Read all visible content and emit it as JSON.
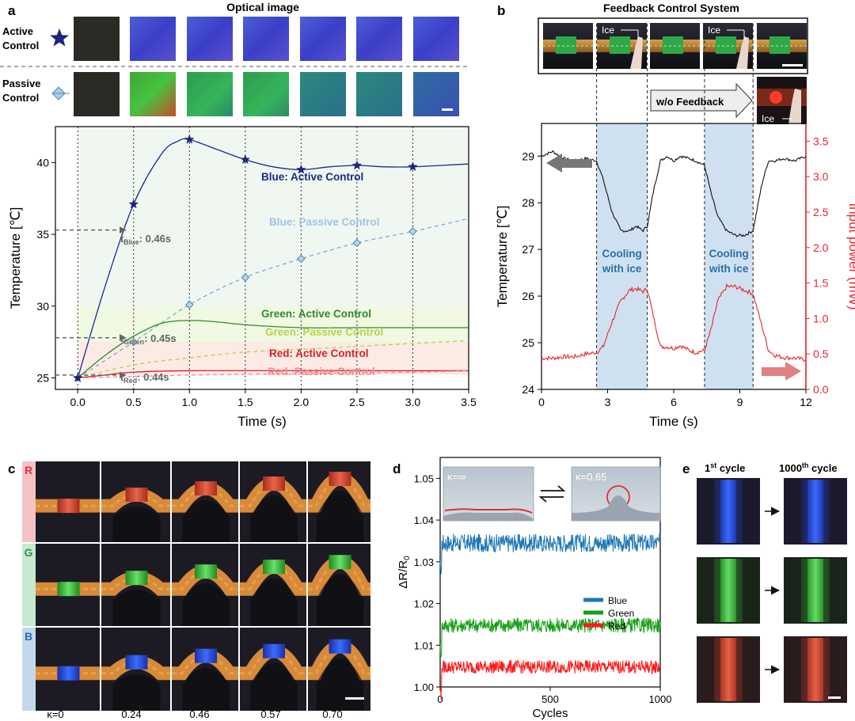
{
  "panel_a": {
    "letter": "a",
    "heading": "Optical image",
    "row_labels": {
      "active": "Active Control",
      "passive": "Passive Control"
    },
    "legend_series": [
      {
        "key": "blue_active",
        "text": "Blue: Active Control",
        "color": "#1a2a8c"
      },
      {
        "key": "blue_passive",
        "text": "Blue: Passive Control",
        "color": "#9fc3e6"
      },
      {
        "key": "green_active",
        "text": "Green: Active Control",
        "color": "#2e8b2e"
      },
      {
        "key": "green_passive",
        "text": "Green: Passive Control",
        "color": "#b8d24a"
      },
      {
        "key": "red_active",
        "text": "Red: Active Control",
        "color": "#d8202a"
      },
      {
        "key": "red_passive",
        "text": "Red: Passive Control",
        "color": "#ef8a8a"
      }
    ],
    "annotations": {
      "t_blue": "tBlue: 0.46s",
      "t_green": "tGreen: 0.45s",
      "t_red": "tRed: 0.44s"
    },
    "annotation_parts": {
      "blue": {
        "t": "t",
        "sub": "Blue",
        "val": ": 0.46s"
      },
      "green": {
        "t": "t",
        "sub": "Green",
        "val": ": 0.45s"
      },
      "red": {
        "t": "t",
        "sub": "Red",
        "val": ": 0.44s"
      }
    }
  },
  "panel_b": {
    "letter": "b",
    "heading": "Feedback Control System",
    "ice_labels": [
      "Ice",
      "Ice",
      "Ice"
    ],
    "feedback_label": "w/o Feedback",
    "cooling_label_1": "Cooling",
    "cooling_label_2": "with ice"
  },
  "panel_c": {
    "letter": "c",
    "row_labels": [
      "R",
      "G",
      "B"
    ],
    "curvatures": [
      "κ=0",
      "0.24",
      "0.46",
      "0.57",
      "0.70"
    ]
  },
  "panel_d": {
    "letter": "d",
    "inset_left": "κ=∞",
    "inset_right": "κ=0.65",
    "legend": [
      {
        "name": "Blue",
        "color": "#1f77b4"
      },
      {
        "name": "Green",
        "color": "#16a016"
      },
      {
        "name": "Red",
        "color": "#ff1a1a"
      }
    ]
  },
  "panel_e": {
    "letter": "e",
    "col_first": "1st cycle",
    "col_last": "1000th cycle",
    "col_first_parts": {
      "num": "1",
      "sup": "st",
      "rest": " cycle"
    },
    "col_last_parts": {
      "num": "1000",
      "sup": "th",
      "rest": " cycle"
    }
  },
  "chart_data": [
    {
      "id": "a",
      "type": "line",
      "xlabel": "Time (s)",
      "ylabel": "Temperature [℃]",
      "xlim": [
        -0.2,
        3.5
      ],
      "ylim": [
        24.2,
        42.5
      ],
      "xticks": [
        "0.0",
        "0.5",
        "1.0",
        "1.5",
        "2.0",
        "2.5",
        "3.0",
        "3.5"
      ],
      "yticks": [
        "25",
        "30",
        "35",
        "40"
      ],
      "series": [
        {
          "name": "Blue: Active Control",
          "color": "#1a2a8c",
          "marker": "star",
          "x": [
            0,
            0.25,
            0.5,
            0.75,
            0.9,
            1.0,
            1.25,
            1.5,
            1.75,
            2.0,
            2.25,
            2.5,
            2.75,
            3.0,
            3.25,
            3.5
          ],
          "y": [
            25,
            31.5,
            37.1,
            40.6,
            41.5,
            41.6,
            40.9,
            40.2,
            39.7,
            39.5,
            39.7,
            39.8,
            39.7,
            39.7,
            39.8,
            39.9
          ],
          "markers_x": [
            0,
            0.5,
            1.0,
            1.5,
            2.0,
            2.5,
            3.0
          ]
        },
        {
          "name": "Blue: Passive Control",
          "color": "#7fa9d6",
          "marker": "diamond",
          "dashed": true,
          "x": [
            0,
            0.5,
            1.0,
            1.5,
            2.0,
            2.5,
            3.0,
            3.5
          ],
          "y": [
            25,
            27.5,
            30.1,
            32.0,
            33.3,
            34.4,
            35.2,
            36.1
          ],
          "markers_x": [
            0.5,
            1.0,
            1.5,
            2.0,
            2.5,
            3.0
          ]
        },
        {
          "name": "Green: Active Control",
          "color": "#2e8b2e",
          "x": [
            0,
            0.25,
            0.5,
            0.75,
            1.0,
            1.25,
            1.5,
            2.0,
            2.5,
            3.0,
            3.5
          ],
          "y": [
            25,
            26.6,
            27.9,
            28.8,
            29.0,
            28.9,
            28.7,
            28.5,
            28.5,
            28.5,
            28.5
          ]
        },
        {
          "name": "Green: Passive Control",
          "color": "#b8d24a",
          "dashed": true,
          "x": [
            0,
            0.5,
            1.0,
            1.5,
            2.0,
            2.5,
            3.0,
            3.5
          ],
          "y": [
            25,
            25.9,
            26.4,
            26.8,
            27.0,
            27.2,
            27.4,
            27.6
          ]
        },
        {
          "name": "Red: Active Control",
          "color": "#d8202a",
          "x": [
            0,
            0.25,
            0.5,
            1.0,
            2.0,
            3.0,
            3.5
          ],
          "y": [
            25,
            25.2,
            25.4,
            25.5,
            25.5,
            25.5,
            25.5
          ]
        },
        {
          "name": "Red: Passive Control",
          "color": "#ef8a8a",
          "dashed": true,
          "x": [
            0,
            0.5,
            1.0,
            2.0,
            3.0,
            3.5
          ],
          "y": [
            25,
            25.1,
            25.2,
            25.3,
            25.4,
            25.5
          ]
        }
      ]
    },
    {
      "id": "b",
      "type": "line",
      "xlabel": "Time (s)",
      "ylabel": "Temperature [℃]",
      "ylabel_right": "Input power (mW)",
      "xlim": [
        0,
        12
      ],
      "ylim": [
        24,
        29.7
      ],
      "ylim_right": [
        0,
        3.75
      ],
      "xticks": [
        "0",
        "3",
        "6",
        "9",
        "12"
      ],
      "yticks": [
        "24",
        "25",
        "26",
        "27",
        "28",
        "29"
      ],
      "yticks_right": [
        "0.0",
        "0.5",
        "1.0",
        "1.5",
        "2.0",
        "2.5",
        "3.0",
        "3.5"
      ],
      "cooling_intervals": [
        [
          2.5,
          4.8
        ],
        [
          7.4,
          9.6
        ]
      ],
      "series": [
        {
          "name": "Temperature",
          "color": "#111111",
          "x": [
            0,
            0.5,
            1,
            1.5,
            2,
            2.5,
            2.8,
            3.2,
            3.6,
            4.0,
            4.3,
            4.6,
            4.8,
            5.1,
            5.4,
            5.7,
            6.0,
            6.3,
            6.7,
            7.0,
            7.4,
            7.7,
            8.0,
            8.4,
            8.8,
            9.2,
            9.6,
            10.0,
            10.3,
            10.6,
            11,
            11.5,
            12
          ],
          "y": [
            29.0,
            29.1,
            28.95,
            28.9,
            28.95,
            28.9,
            28.5,
            27.8,
            27.4,
            27.4,
            27.5,
            27.4,
            27.5,
            28.3,
            28.9,
            29.0,
            28.9,
            29.0,
            28.95,
            28.9,
            28.8,
            28.2,
            27.7,
            27.4,
            27.3,
            27.3,
            27.4,
            28.4,
            28.9,
            28.9,
            28.95,
            28.9,
            29.0
          ]
        },
        {
          "name": "Input power",
          "color": "#e8262c",
          "axis": "right",
          "x": [
            0,
            0.5,
            1,
            1.5,
            2,
            2.5,
            2.8,
            3.2,
            3.6,
            4.0,
            4.3,
            4.6,
            4.8,
            5.1,
            5.4,
            5.7,
            6.0,
            6.3,
            6.7,
            7.0,
            7.4,
            7.7,
            8.0,
            8.4,
            8.8,
            9.2,
            9.6,
            10.0,
            10.3,
            10.6,
            11,
            11.5,
            12
          ],
          "y": [
            0.44,
            0.44,
            0.46,
            0.46,
            0.5,
            0.52,
            0.6,
            0.95,
            1.25,
            1.4,
            1.42,
            1.38,
            1.42,
            1.0,
            0.6,
            0.6,
            0.58,
            0.62,
            0.55,
            0.52,
            0.55,
            0.85,
            1.25,
            1.45,
            1.45,
            1.4,
            1.35,
            0.9,
            0.55,
            0.48,
            0.45,
            0.44,
            0.42
          ]
        }
      ]
    },
    {
      "id": "d",
      "type": "line",
      "xlabel": "Cycles",
      "ylabel": "ΔR/R0",
      "xlim": [
        0,
        1000
      ],
      "ylim": [
        1.0,
        1.055
      ],
      "xticks": [
        "0",
        "500",
        "1000"
      ],
      "yticks": [
        "1.00",
        "1.01",
        "1.02",
        "1.03",
        "1.04",
        "1.05"
      ],
      "series": [
        {
          "name": "Blue",
          "color": "#1f77b4",
          "mean": 1.0345,
          "noise": 0.0022
        },
        {
          "name": "Green",
          "color": "#16a016",
          "mean": 1.0148,
          "noise": 0.0018
        },
        {
          "name": "Red",
          "color": "#ff1a1a",
          "mean": 1.0048,
          "noise": 0.0016
        }
      ]
    }
  ]
}
